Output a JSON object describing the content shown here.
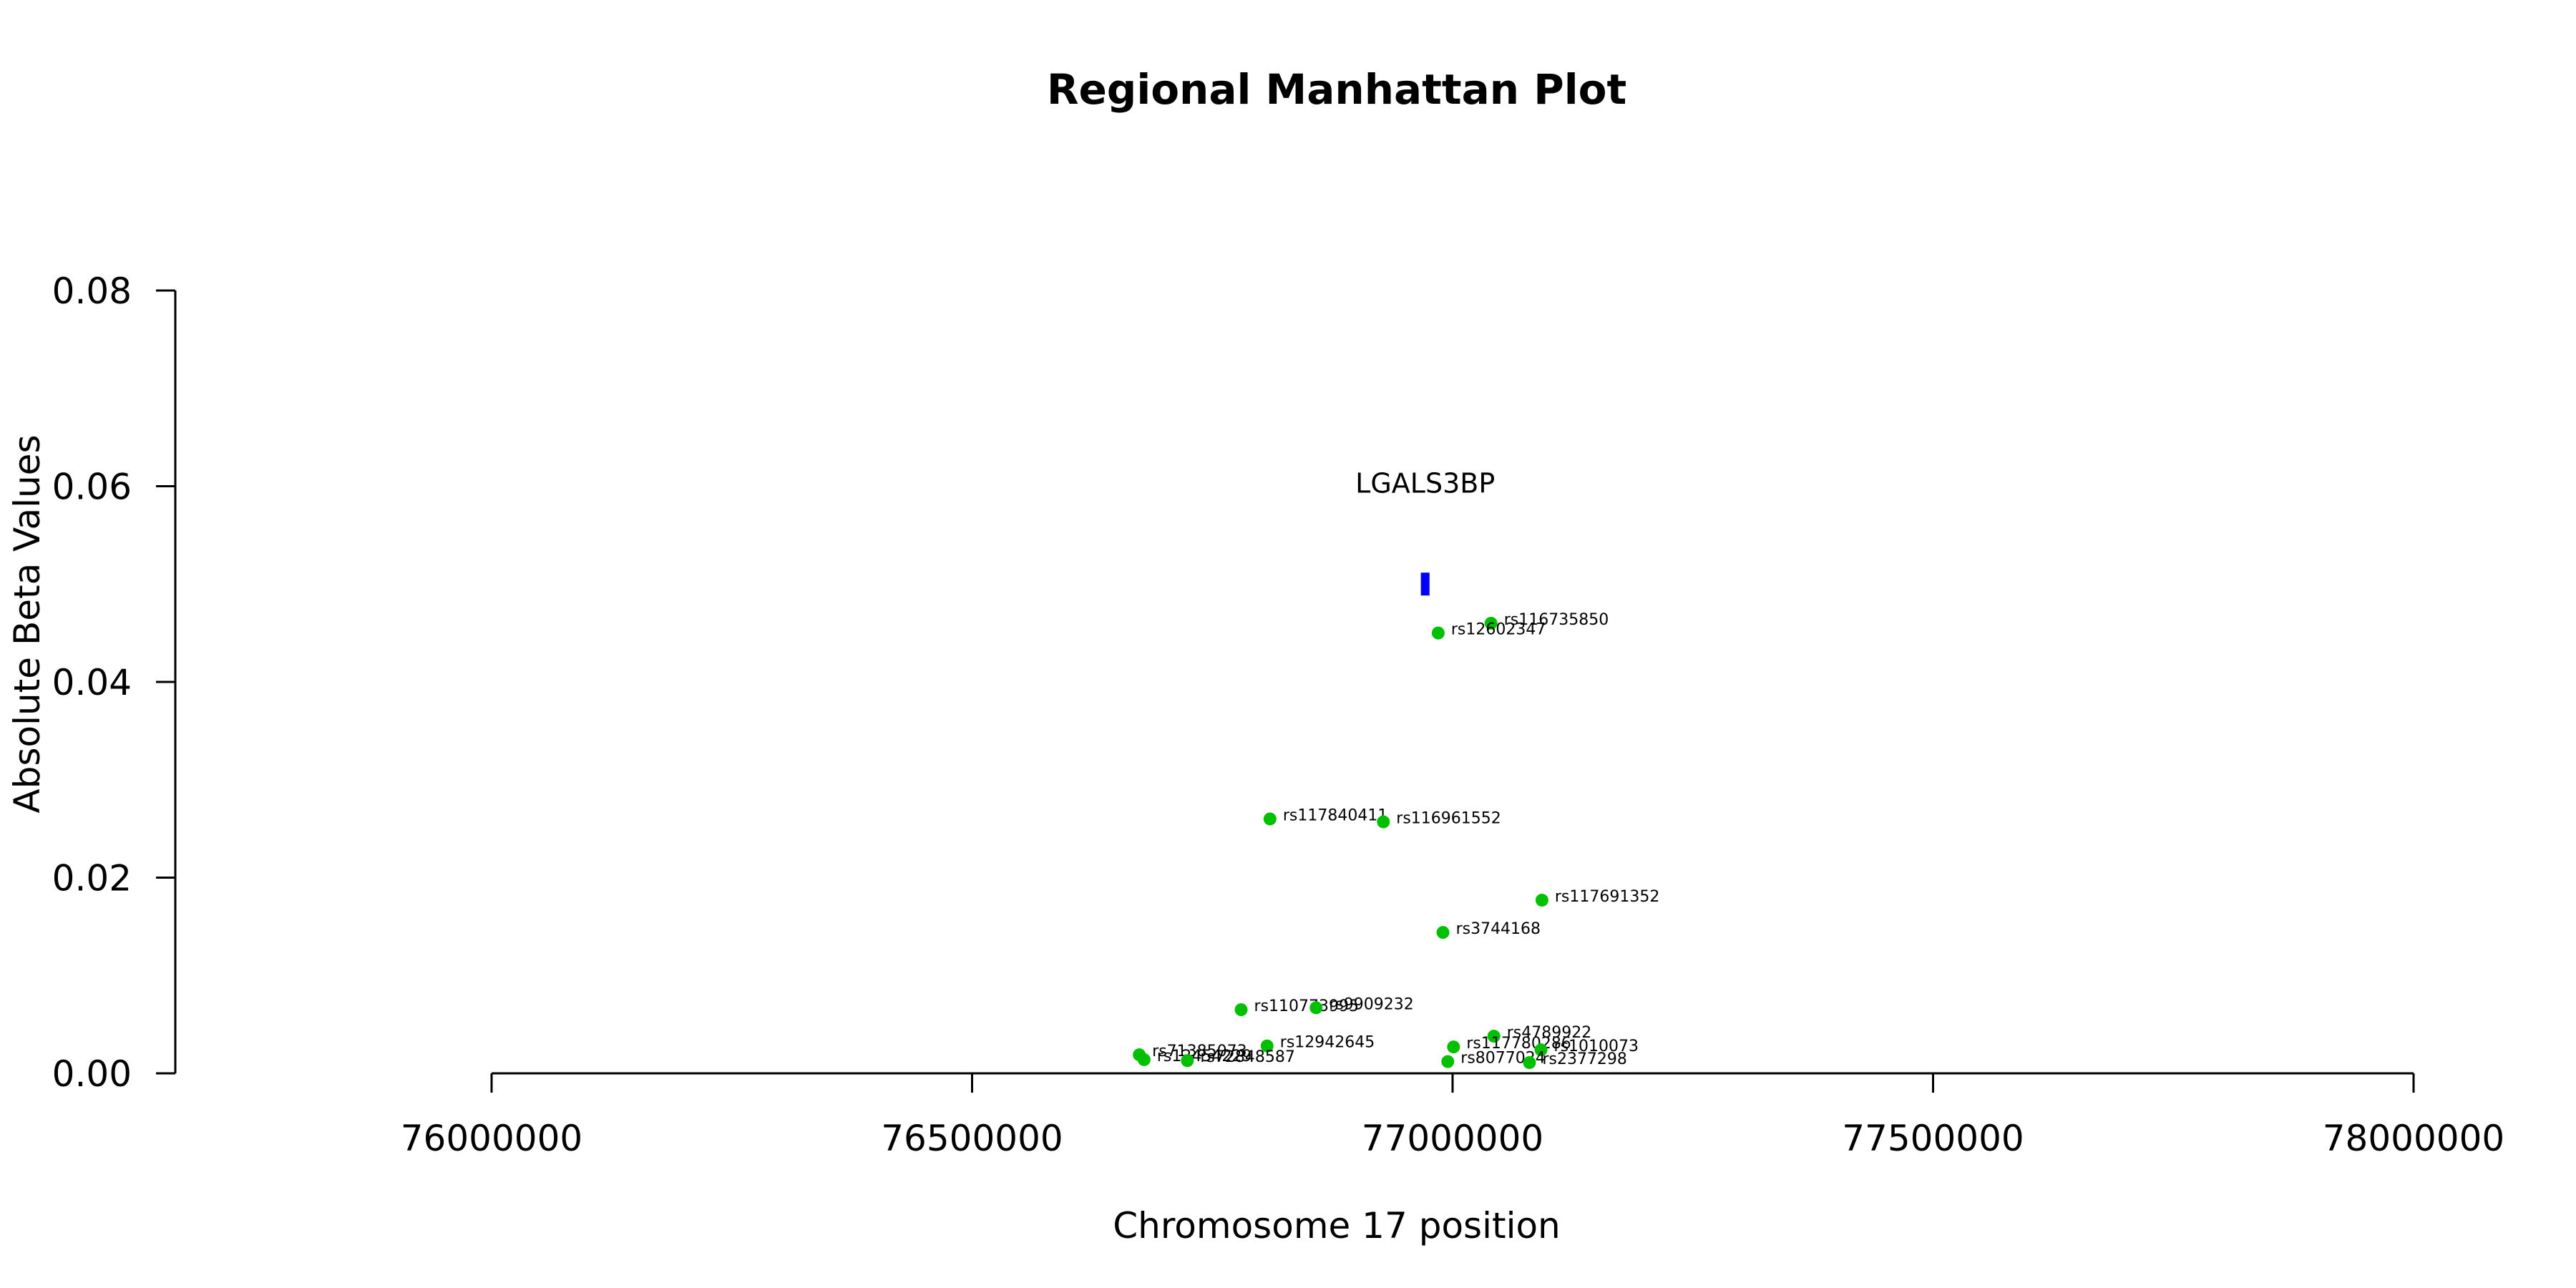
{
  "chart_data": {
    "type": "scatter",
    "title": "Regional Manhattan Plot",
    "xlabel": "Chromosome 17 position",
    "ylabel": "Absolute Beta Values",
    "xlim": [
      76000000,
      78000000
    ],
    "ylim": [
      0,
      0.08
    ],
    "x_ticks": [
      76000000,
      76500000,
      77000000,
      77500000,
      78000000
    ],
    "y_ticks": [
      0.0,
      0.02,
      0.04,
      0.06,
      0.08
    ],
    "x_tick_labels": [
      "76000000",
      "76500000",
      "77000000",
      "77500000",
      "78000000"
    ],
    "y_tick_labels": [
      "0.00",
      "0.02",
      "0.04",
      "0.06",
      "0.08"
    ],
    "grid": false,
    "point_color": "#00c000",
    "gene_color": "#0000ff",
    "points": [
      {
        "label": "rs116735850",
        "x": 77040000,
        "y": 0.046
      },
      {
        "label": "rs12602347",
        "x": 76985000,
        "y": 0.045
      },
      {
        "label": "rs117840411",
        "x": 76810000,
        "y": 0.026
      },
      {
        "label": "rs116961552",
        "x": 76928000,
        "y": 0.0257
      },
      {
        "label": "rs117691352",
        "x": 77093000,
        "y": 0.0177
      },
      {
        "label": "rs3744168",
        "x": 76990000,
        "y": 0.0144
      },
      {
        "label": "rs110773995",
        "x": 76780000,
        "y": 0.0065
      },
      {
        "label": "rs9909232",
        "x": 76858000,
        "y": 0.0067
      },
      {
        "label": "rs12942645",
        "x": 76807000,
        "y": 0.0028
      },
      {
        "label": "rs4789922",
        "x": 77043000,
        "y": 0.0038
      },
      {
        "label": "rs117780286",
        "x": 77001000,
        "y": 0.0027
      },
      {
        "label": "rs1010073",
        "x": 77092000,
        "y": 0.0024
      },
      {
        "label": "rs71385073",
        "x": 76674000,
        "y": 0.0019
      },
      {
        "label": "rs12454229",
        "x": 76679000,
        "y": 0.0014
      },
      {
        "label": "rs72848587",
        "x": 76724000,
        "y": 0.0013
      },
      {
        "label": "rs8077024",
        "x": 76995000,
        "y": 0.0012
      },
      {
        "label": "rs2377298",
        "x": 77080000,
        "y": 0.0011
      }
    ],
    "genes": [
      {
        "name": "LGALS3BP",
        "start": 76967000,
        "end": 76976000,
        "y": 0.05
      }
    ]
  }
}
